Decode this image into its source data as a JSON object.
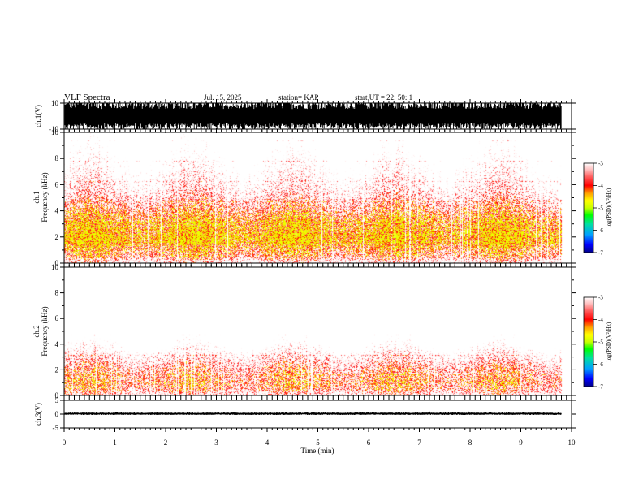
{
  "header": {
    "title": "VLF Spectra",
    "date": "Jul. 15, 2025",
    "station": "station= KAP",
    "start": "start  UT =   22: 50: 1"
  },
  "colors": {
    "wave_trace": "#000000",
    "axis": "#000000",
    "colormap": [
      "#00008b",
      "#0000ff",
      "#00a0ff",
      "#00e0a0",
      "#00ff00",
      "#c8ff00",
      "#ffff00",
      "#ffa500",
      "#ff0000",
      "#ff6060",
      "#ffc0c0",
      "#ffffff"
    ]
  },
  "chart_data": [
    {
      "type": "line",
      "name": "ch1-waveform",
      "ylabel": "ch.1(V)",
      "ylim": [
        -10,
        10
      ],
      "yticks": [
        {
          "value": 10,
          "label": "10"
        },
        {
          "value": -10,
          "label": "-10"
        }
      ],
      "description_values": {
        "min_amplitude": -10,
        "max_amplitude": 10
      },
      "xlim": [
        0,
        10
      ],
      "data_end_min": 9.8
    },
    {
      "type": "heatmap",
      "name": "ch1-spectrogram",
      "ylabel": "ch.1\nFrequency  (kHz)",
      "ylim": [
        0,
        10
      ],
      "yticks": [
        "0",
        "2",
        "4",
        "6",
        "8",
        "10"
      ],
      "xlim": [
        0,
        10
      ],
      "data_end_min": 9.8,
      "profile_freq_khz": [
        0,
        0.5,
        1,
        1.5,
        2,
        2.5,
        3,
        3.5,
        4,
        5,
        6,
        7,
        8,
        9,
        10
      ],
      "profile_log_psd": [
        -4.4,
        -4.0,
        -3.9,
        -3.7,
        -3.6,
        -3.7,
        -3.75,
        -3.85,
        -4.0,
        -4.25,
        -4.4,
        -4.5,
        -4.6,
        -4.7,
        -4.75
      ],
      "colorbar": {
        "label": "log(PSD)(V²/Hz)",
        "range": [
          -7,
          -3
        ],
        "ticks": [
          "-3",
          "-4",
          "-5",
          "-6",
          "-7"
        ]
      }
    },
    {
      "type": "heatmap",
      "name": "ch2-spectrogram",
      "ylabel": "ch.2\nFrequency  (kHz)",
      "ylim": [
        0,
        10
      ],
      "yticks": [
        "0",
        "2",
        "4",
        "6",
        "8",
        "10"
      ],
      "xlim": [
        0,
        10
      ],
      "data_end_min": 9.8,
      "profile_freq_khz": [
        0,
        0.5,
        1,
        1.5,
        2,
        2.5,
        3,
        3.5,
        4,
        5,
        6,
        7,
        8,
        9,
        10
      ],
      "profile_log_psd": [
        -4.3,
        -4.05,
        -3.95,
        -4.05,
        -4.1,
        -4.2,
        -4.35,
        -4.5,
        -4.6,
        -4.8,
        -5.0,
        -5.1,
        -5.2,
        -5.3,
        -5.3
      ],
      "colorbar": {
        "label": "log(PSD)(V²/Hz)",
        "range": [
          -7,
          -3
        ],
        "ticks": [
          "-3",
          "-4",
          "-5",
          "-6",
          "-7"
        ]
      }
    },
    {
      "type": "line",
      "name": "ch3-waveform",
      "ylabel": "ch.3(V)",
      "ylim": [
        -5,
        5
      ],
      "yticks": [
        {
          "value": 5,
          "label": "5"
        },
        {
          "value": 0,
          "label": "0"
        },
        {
          "value": -5,
          "label": "-5"
        }
      ],
      "description_values": {
        "baseline_v": 0.3,
        "amplitude_v": 0.6
      },
      "xlim": [
        0,
        10
      ],
      "data_end_min": 9.8
    }
  ],
  "xaxis": {
    "label": "Time  (min)",
    "range": [
      0,
      10
    ],
    "ticks": [
      "0",
      "1",
      "2",
      "3",
      "4",
      "5",
      "6",
      "7",
      "8",
      "9",
      "10"
    ]
  }
}
